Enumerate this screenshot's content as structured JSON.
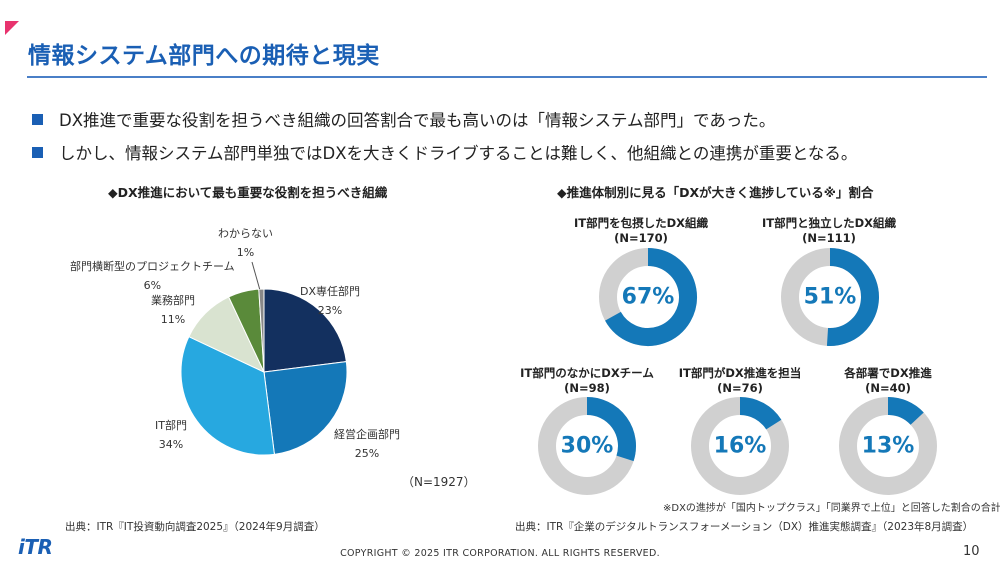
{
  "slide": {
    "title": "情報システム部門への期待と現実",
    "bullets": [
      "DX推進で重要な役割を担うべき組織の回答割合で最も高いのは「情報システム部門」であった。",
      "しかし、情報システム部門単独ではDXを大きくドライブすることは難しく、他組織との連携が重要となる。"
    ],
    "page_number": "10",
    "copyright": "COPYRIGHT © 2025 ITR CORPORATION. ALL RIGHTS RESERVED.",
    "logo_text": "iTR"
  },
  "left": {
    "title": "◆DX推進において最も重要な役割を担うべき組織",
    "n_label": "（N=1927）",
    "source": "出典：ITR『IT投資動向調査2025』（2024年9月調査）",
    "labels": [
      {
        "name": "DX専任部門",
        "pct": "23%"
      },
      {
        "name": "経営企画部門",
        "pct": "25%"
      },
      {
        "name": "IT部門",
        "pct": "34%"
      },
      {
        "name": "業務部門",
        "pct": "11%"
      },
      {
        "name": "部門横断型のプロジェクトチーム",
        "pct": "6%"
      },
      {
        "name": "わからない",
        "pct": "1%"
      }
    ]
  },
  "right": {
    "title": "◆推進体制別に見る「DXが大きく進捗している※」割合",
    "note": "※DXの進捗が「国内トップクラス」「同業界で上位」と回答した割合の合計",
    "source": "出典：ITR『企業のデジタルトランスフォーメーション（DX）推進実態調査』（2023年8月調査）",
    "donuts": [
      {
        "title": "IT部門を包摂したDX組織",
        "n": "(N=170)",
        "pct_label": "67%"
      },
      {
        "title": "IT部門と独立したDX組織",
        "n": "(N=111)",
        "pct_label": "51%"
      },
      {
        "title": "IT部門のなかにDXチーム",
        "n": "(N=98)",
        "pct_label": "30%"
      },
      {
        "title": "IT部門がDX推進を担当",
        "n": "(N=76)",
        "pct_label": "16%"
      },
      {
        "title": "各部署でDX推進",
        "n": "(N=40)",
        "pct_label": "13%"
      }
    ]
  },
  "chart_data": [
    {
      "type": "pie",
      "title": "◆DX推進において最も重要な役割を担うべき組織",
      "categories": [
        "DX専任部門",
        "経営企画部門",
        "IT部門",
        "業務部門",
        "部門横断型のプロジェクトチーム",
        "わからない"
      ],
      "values": [
        23,
        25,
        34,
        11,
        6,
        1
      ],
      "colors": [
        "#13305f",
        "#1478b8",
        "#27a8e0",
        "#d9e3d0",
        "#5a8a3a",
        "#888888"
      ]
    },
    {
      "type": "pie",
      "subtype": "donut",
      "title": "◆推進体制別に見る「DXが大きく進捗している※」割合",
      "categories": [
        "IT部門を包摂したDX組織",
        "IT部門と独立したDX組織",
        "IT部門のなかにDXチーム",
        "IT部門がDX推進を担当",
        "各部署でDX推進"
      ],
      "values": [
        67,
        51,
        30,
        16,
        13
      ],
      "colors": {
        "filled": "#1478b8",
        "remainder": "#d0d0d0"
      }
    }
  ]
}
